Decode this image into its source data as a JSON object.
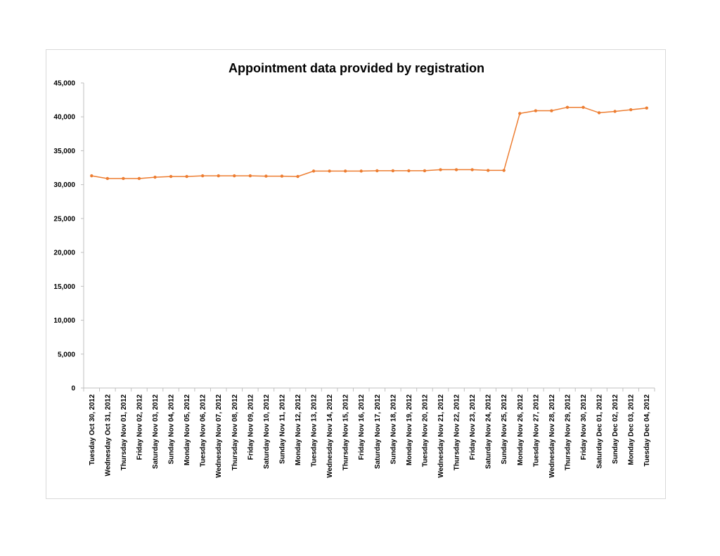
{
  "chart_data": {
    "type": "line",
    "title": "Appointment data provided by registration",
    "xlabel": "",
    "ylabel": "",
    "ylim": [
      0,
      45000
    ],
    "y_ticks": [
      "0",
      "5,000",
      "10,000",
      "15,000",
      "20,000",
      "25,000",
      "30,000",
      "35,000",
      "40,000",
      "45,000"
    ],
    "grid": false,
    "legend": "none",
    "line_color": "#ED7D31",
    "categories": [
      "Tuesday Oct 30, 2012",
      "Wednesday Oct 31, 2012",
      "Thursday Nov 01, 2012",
      "Friday Nov 02, 2012",
      "Saturday Nov 03, 2012",
      "Sunday Nov 04, 2012",
      "Monday Nov 05, 2012",
      "Tuesday Nov 06, 2012",
      "Wednesday Nov 07, 2012",
      "Thursday Nov 08, 2012",
      "Friday Nov 09, 2012",
      "Saturday Nov 10, 2012",
      "Sunday Nov 11, 2012",
      "Monday Nov 12, 2012",
      "Tuesday Nov 13, 2012",
      "Wednesday Nov 14, 2012",
      "Thursday Nov 15, 2012",
      "Friday Nov 16, 2012",
      "Saturday Nov 17, 2012",
      "Sunday Nov 18, 2012",
      "Monday Nov 19, 2012",
      "Tuesday Nov 20, 2012",
      "Wednesday Nov 21, 2012",
      "Thursday Nov 22, 2012",
      "Friday Nov 23, 2012",
      "Saturday Nov 24, 2012",
      "Sunday Nov 25, 2012",
      "Monday Nov 26, 2012",
      "Tuesday Nov 27, 2012",
      "Wednesday Nov 28, 2012",
      "Thursday Nov 29, 2012",
      "Friday Nov 30, 2012",
      "Saturday Dec 01, 2012",
      "Sunday Dec 02, 2012",
      "Monday Dec 03, 2012",
      "Tuesday Dec 04, 2012"
    ],
    "values": [
      31300,
      30900,
      30900,
      30900,
      31100,
      31200,
      31200,
      31300,
      31300,
      31300,
      31300,
      31250,
      31250,
      31200,
      32000,
      32000,
      32000,
      32000,
      32050,
      32050,
      32050,
      32050,
      32200,
      32200,
      32200,
      32100,
      32100,
      40500,
      40900,
      40900,
      41400,
      41400,
      40600,
      40800,
      41050,
      41300
    ]
  }
}
